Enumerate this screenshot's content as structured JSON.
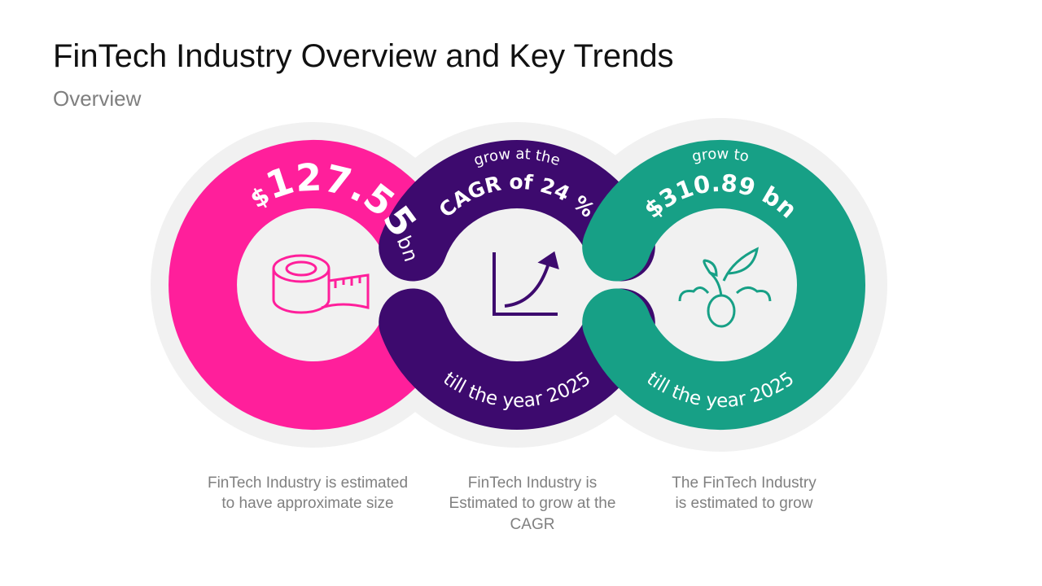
{
  "header": {
    "title": "FinTech Industry Overview and Key Trends",
    "subtitle": "Overview"
  },
  "rings": [
    {
      "top_parts": [
        "$",
        "127.55",
        "bn"
      ],
      "caption": [
        "FinTech Industry is estimated",
        "to have approximate size"
      ]
    },
    {
      "top_small": "grow at the",
      "top_large": "CAGR of 24 %",
      "bottom": "till the year 2025",
      "caption": [
        "FinTech Industry is",
        "Estimated to grow at the",
        "CAGR"
      ]
    },
    {
      "top_small": "grow to",
      "top_large": "$310.89 bn",
      "bottom": "till the year 2025",
      "caption": [
        "The FinTech Industry",
        "is estimated to grow"
      ]
    }
  ]
}
